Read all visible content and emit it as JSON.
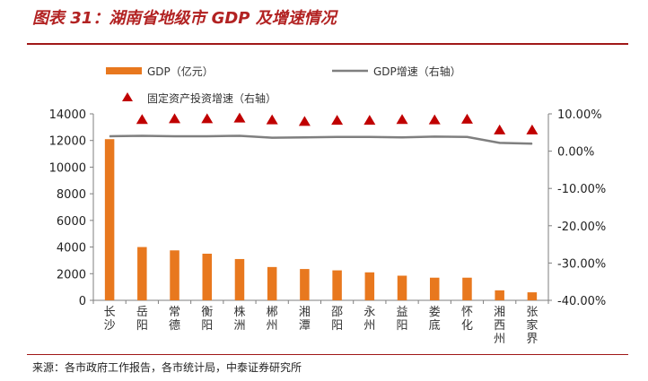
{
  "page": {
    "title": "图表 31：湖南省地级市 GDP 及增速情况",
    "source": "来源：各市政府工作报告，各市统计局，中泰证券研究所"
  },
  "colors": {
    "title": "#b22222",
    "bar": "#e8781e",
    "line": "#7f7f7f",
    "marker": "#c00000",
    "rule": "#a01818"
  },
  "chart_data": {
    "type": "bar",
    "categories": [
      "长沙",
      "岳阳",
      "常德",
      "衡阳",
      "株洲",
      "郴州",
      "湘潭",
      "邵阳",
      "永州",
      "益阳",
      "娄底",
      "怀化",
      "湘西州",
      "张家界"
    ],
    "category_lines": [
      [
        "长",
        "沙"
      ],
      [
        "岳",
        "阳"
      ],
      [
        "常",
        "德"
      ],
      [
        "衡",
        "阳"
      ],
      [
        "株",
        "洲"
      ],
      [
        "郴",
        "州"
      ],
      [
        "湘",
        "潭"
      ],
      [
        "邵",
        "阳"
      ],
      [
        "永",
        "州"
      ],
      [
        "益",
        "阳"
      ],
      [
        "娄",
        "底"
      ],
      [
        "怀",
        "化"
      ],
      [
        "湘",
        "西",
        "州"
      ],
      [
        "张",
        "家",
        "界"
      ]
    ],
    "series": [
      {
        "name": "GDP（亿元）",
        "kind": "bar",
        "axis": "left",
        "values": [
          12100,
          4000,
          3750,
          3500,
          3100,
          2500,
          2350,
          2250,
          2100,
          1850,
          1700,
          1700,
          750,
          600
        ]
      },
      {
        "name": "GDP增速（右轴）",
        "kind": "line",
        "axis": "right",
        "values": [
          4.0,
          4.1,
          4.0,
          4.0,
          4.1,
          3.6,
          3.7,
          3.8,
          3.8,
          3.7,
          3.9,
          3.8,
          2.2,
          2.0
        ]
      },
      {
        "name": "固定资产投资增速（右轴）",
        "kind": "marker",
        "axis": "right",
        "values": [
          null,
          8.5,
          8.7,
          8.7,
          8.9,
          8.4,
          8.0,
          8.3,
          8.3,
          8.5,
          8.4,
          8.6,
          5.7,
          5.7
        ]
      }
    ],
    "y_left": {
      "min": 0,
      "max": 14000,
      "step": 2000,
      "ticks": [
        "0",
        "2000",
        "4000",
        "6000",
        "8000",
        "10000",
        "12000",
        "14000"
      ]
    },
    "y_right": {
      "min": -40,
      "max": 10,
      "step": 10,
      "ticks": [
        "-40.00%",
        "-30.00%",
        "-20.00%",
        "-10.00%",
        "0.00%",
        "10.00%"
      ]
    },
    "legend": [
      "GDP（亿元）",
      "GDP增速（右轴）",
      "固定资产投资增速（右轴）"
    ],
    "legend_position": "top",
    "grid": false
  }
}
